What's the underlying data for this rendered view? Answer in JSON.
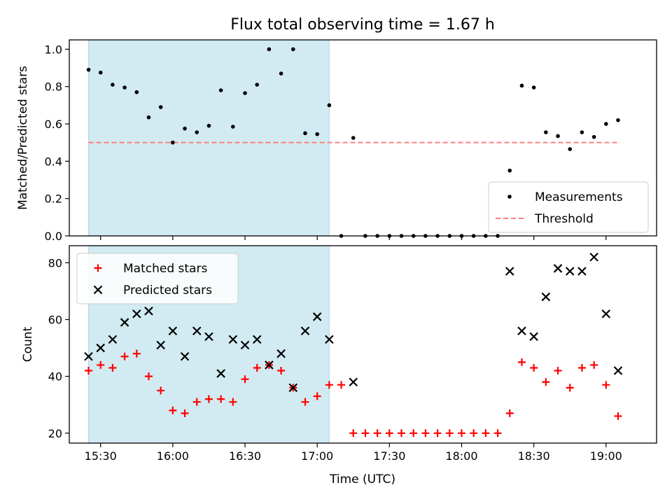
{
  "figure": {
    "title": "Flux total observing time = 1.67 h",
    "xlabel": "Time (UTC)",
    "top_ylabel": "Matched/Predicted stars",
    "bottom_ylabel": "Count"
  },
  "colors": {
    "shade": "#add8e6",
    "threshold": "#ff7f7f",
    "measurement": "#000000",
    "matched": "#ff0000",
    "predicted": "#000000"
  },
  "chart_data": [
    {
      "type": "scatter",
      "title": "Flux total observing time = 1.67 h",
      "xlabel": "",
      "ylabel": "Matched/Predicted stars",
      "ylim": [
        0,
        1.05
      ],
      "xlim": [
        "15:17",
        "19:21"
      ],
      "x_ticks": [
        "15:30",
        "16:00",
        "16:30",
        "17:00",
        "17:30",
        "18:00",
        "18:30",
        "19:00"
      ],
      "y_ticks": [
        "0.0",
        "0.2",
        "0.4",
        "0.6",
        "0.8",
        "1.0"
      ],
      "shaded_interval": [
        "15:25",
        "17:05"
      ],
      "legend": "lower right",
      "series": [
        {
          "name": "Measurements",
          "marker": "dot",
          "x": [
            "15:25",
            "15:30",
            "15:35",
            "15:40",
            "15:45",
            "15:50",
            "15:55",
            "16:00",
            "16:05",
            "16:10",
            "16:15",
            "16:20",
            "16:25",
            "16:30",
            "16:35",
            "16:40",
            "16:45",
            "16:50",
            "16:55",
            "17:00",
            "17:05",
            "17:15",
            "17:20",
            "17:25",
            "17:30",
            "17:35",
            "17:40",
            "17:45",
            "17:50",
            "17:55",
            "18:00",
            "18:05",
            "18:10",
            "18:15",
            "18:20",
            "18:25",
            "18:30",
            "18:35",
            "18:40",
            "18:45",
            "18:50",
            "18:55",
            "19:00",
            "19:05"
          ],
          "y": [
            0.89,
            0.875,
            0.81,
            0.795,
            0.77,
            0.635,
            0.69,
            0.5,
            0.575,
            0.555,
            0.59,
            0.78,
            0.585,
            0.765,
            0.81,
            1.0,
            0.87,
            1.0,
            0.55,
            0.545,
            0.7,
            0.525,
            0,
            0,
            0,
            0,
            0,
            0,
            0,
            0,
            0,
            0,
            0,
            0,
            0.35,
            0.805,
            0.795,
            0.555,
            0.535,
            0.465,
            0.555,
            0.53,
            0.6,
            0.62
          ]
        },
        {
          "name": "Threshold",
          "marker": "dashed-line",
          "x": [
            "15:25",
            "19:05"
          ],
          "y": [
            0.5,
            0.5
          ]
        }
      ],
      "extra_points": {
        "x": [
          "17:10"
        ],
        "y": [
          0
        ]
      }
    },
    {
      "type": "scatter",
      "xlabel": "Time (UTC)",
      "ylabel": "Count",
      "ylim": [
        16.5,
        86
      ],
      "xlim": [
        "15:17",
        "19:21"
      ],
      "x_ticks": [
        "15:30",
        "16:00",
        "16:30",
        "17:00",
        "17:30",
        "18:00",
        "18:30",
        "19:00"
      ],
      "y_ticks": [
        "20",
        "40",
        "60",
        "80"
      ],
      "shaded_interval": [
        "15:25",
        "17:05"
      ],
      "legend": "upper left",
      "series": [
        {
          "name": "Matched stars",
          "marker": "plus",
          "x": [
            "15:25",
            "15:30",
            "15:35",
            "15:40",
            "15:45",
            "15:50",
            "15:55",
            "16:00",
            "16:05",
            "16:10",
            "16:15",
            "16:20",
            "16:25",
            "16:30",
            "16:35",
            "16:40",
            "16:45",
            "16:50",
            "16:55",
            "17:00",
            "17:05",
            "17:10",
            "17:15",
            "17:20",
            "17:25",
            "17:30",
            "17:35",
            "17:40",
            "17:45",
            "17:50",
            "17:55",
            "18:00",
            "18:05",
            "18:10",
            "18:15",
            "18:20",
            "18:25",
            "18:30",
            "18:35",
            "18:40",
            "18:45",
            "18:50",
            "18:55",
            "19:00",
            "19:05"
          ],
          "y": [
            42,
            44,
            43,
            47,
            48,
            40,
            35,
            28,
            27,
            31,
            32,
            32,
            31,
            39,
            43,
            44,
            42,
            36,
            31,
            33,
            37,
            37,
            20,
            20,
            20,
            20,
            20,
            20,
            20,
            20,
            20,
            20,
            20,
            20,
            20,
            27,
            45,
            43,
            38,
            42,
            36,
            43,
            44,
            37,
            26
          ]
        },
        {
          "name": "Predicted stars",
          "marker": "x",
          "x": [
            "15:25",
            "15:30",
            "15:35",
            "15:40",
            "15:45",
            "15:50",
            "15:55",
            "16:00",
            "16:05",
            "16:10",
            "16:15",
            "16:20",
            "16:25",
            "16:30",
            "16:35",
            "16:40",
            "16:45",
            "16:50",
            "16:55",
            "17:00",
            "17:05",
            "17:15",
            "18:20",
            "18:25",
            "18:30",
            "18:35",
            "18:40",
            "18:45",
            "18:50",
            "18:55",
            "19:00",
            "19:05"
          ],
          "y": [
            47,
            50,
            53,
            59,
            62,
            63,
            51,
            56,
            47,
            56,
            54,
            41,
            53,
            51,
            53,
            44,
            48,
            36,
            56,
            61,
            53,
            38,
            77,
            56,
            54,
            68,
            78,
            77,
            77,
            82,
            62,
            42
          ]
        }
      ]
    }
  ]
}
